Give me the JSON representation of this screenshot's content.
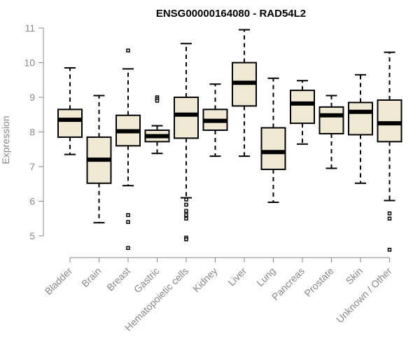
{
  "chart_data": {
    "type": "boxplot",
    "title": "ENSG00000164080 - RAD54L2",
    "xlabel": "",
    "ylabel": "Expression",
    "ylim": [
      4.5,
      11.1
    ],
    "yticks": [
      5,
      6,
      7,
      8,
      9,
      10,
      11
    ],
    "categories": [
      "Bladder",
      "Brain",
      "Breast",
      "Gastric",
      "Hematopoietic cells",
      "Kidney",
      "Liver",
      "Lung",
      "Pancreas",
      "Prostate",
      "Skin",
      "Unknown / Other"
    ],
    "boxes": [
      {
        "name": "Bladder",
        "min": 7.35,
        "q1": 7.85,
        "median": 8.35,
        "q3": 8.65,
        "max": 9.85,
        "outliers": []
      },
      {
        "name": "Brain",
        "min": 5.38,
        "q1": 6.52,
        "median": 7.2,
        "q3": 7.85,
        "max": 9.05,
        "outliers": []
      },
      {
        "name": "Breast",
        "min": 6.45,
        "q1": 7.6,
        "median": 8.02,
        "q3": 8.48,
        "max": 9.82,
        "outliers": [
          10.35,
          5.6,
          5.4,
          4.65
        ]
      },
      {
        "name": "Gastric",
        "min": 7.38,
        "q1": 7.72,
        "median": 7.88,
        "q3": 8.05,
        "max": 8.18,
        "outliers": [
          9.0,
          8.95,
          8.9
        ]
      },
      {
        "name": "Hematopoietic cells",
        "min": 6.1,
        "q1": 7.82,
        "median": 8.5,
        "q3": 9.0,
        "max": 10.55,
        "outliers": [
          6.05,
          5.9,
          5.72,
          5.6,
          5.5,
          4.95,
          4.9
        ]
      },
      {
        "name": "Kidney",
        "min": 7.3,
        "q1": 8.05,
        "median": 8.32,
        "q3": 8.65,
        "max": 9.38,
        "outliers": []
      },
      {
        "name": "Liver",
        "min": 7.3,
        "q1": 8.75,
        "median": 9.42,
        "q3": 10.0,
        "max": 10.95,
        "outliers": []
      },
      {
        "name": "Lung",
        "min": 5.97,
        "q1": 6.92,
        "median": 7.42,
        "q3": 8.12,
        "max": 9.55,
        "outliers": []
      },
      {
        "name": "Pancreas",
        "min": 7.65,
        "q1": 8.25,
        "median": 8.82,
        "q3": 9.2,
        "max": 9.48,
        "outliers": []
      },
      {
        "name": "Prostate",
        "min": 6.95,
        "q1": 7.95,
        "median": 8.48,
        "q3": 8.72,
        "max": 9.05,
        "outliers": []
      },
      {
        "name": "Skin",
        "min": 6.52,
        "q1": 7.92,
        "median": 8.58,
        "q3": 8.85,
        "max": 9.65,
        "outliers": []
      },
      {
        "name": "Unknown / Other",
        "min": 6.02,
        "q1": 7.72,
        "median": 8.25,
        "q3": 8.92,
        "max": 10.3,
        "outliers": [
          5.65,
          5.5,
          4.6
        ]
      }
    ],
    "colors": {
      "box_fill": "#efe8d2",
      "stroke": "#000000",
      "axis": "#888888"
    }
  }
}
